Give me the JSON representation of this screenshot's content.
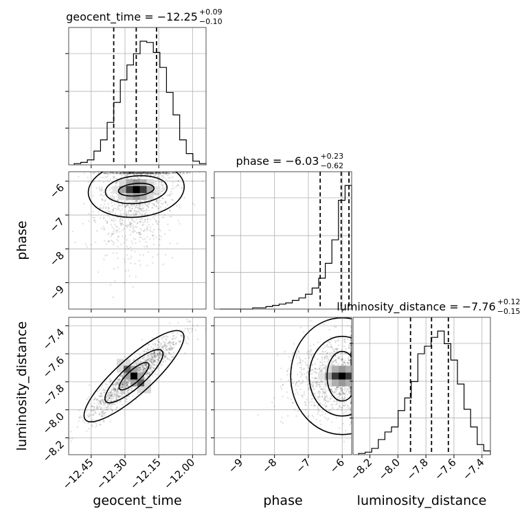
{
  "chart_data": {
    "type": "corner",
    "parameters": [
      "geocent_time",
      "phase",
      "luminosity_distance"
    ],
    "titles": {
      "geocent_time": {
        "name": "geocent_time",
        "median": "−12.25",
        "plus": "+0.09",
        "minus": "−0.10"
      },
      "phase": {
        "name": "phase",
        "median": "−6.03",
        "plus": "+0.23",
        "minus": "−0.62"
      },
      "luminosity_distance": {
        "name": "luminosity_distance",
        "median": "−7.76",
        "plus": "+0.12",
        "minus": "−0.15"
      }
    },
    "ranges": {
      "geocent_time": [
        -12.55,
        -11.94
      ],
      "phase": [
        -9.78,
        -5.72
      ],
      "luminosity_distance": [
        -8.32,
        -7.34
      ]
    },
    "ticks": {
      "geocent_time": {
        "values": [
          -12.45,
          -12.3,
          -12.15,
          -12.0
        ],
        "labels": [
          "−12.45",
          "−12.30",
          "−12.15",
          "−12.00"
        ]
      },
      "phase": {
        "values": [
          -9,
          -8,
          -7,
          -6
        ],
        "labels": [
          "−9",
          "−8",
          "−7",
          "−6"
        ]
      },
      "luminosity_distance": {
        "values": [
          -8.2,
          -8.0,
          -7.8,
          -7.6,
          -7.4
        ],
        "labels": [
          "−8.2",
          "−8.0",
          "−7.8",
          "−7.6",
          "−7.4"
        ]
      }
    },
    "quantiles": {
      "geocent_time": [
        -12.35,
        -12.25,
        -12.16
      ],
      "phase": [
        -6.65,
        -6.03,
        -5.8
      ],
      "luminosity_distance": [
        -7.91,
        -7.76,
        -7.64
      ]
    },
    "histograms": {
      "geocent_time": [
        1,
        2,
        4,
        11,
        20,
        34,
        50,
        68,
        80,
        89,
        99,
        98,
        90,
        78,
        58,
        40,
        20,
        9,
        3,
        1
      ],
      "phase": [
        0,
        0,
        0,
        0,
        0,
        1,
        1,
        2,
        3,
        4,
        5,
        7,
        9,
        12,
        17,
        25,
        37,
        56,
        88,
        100
      ],
      "luminosity_distance": [
        1,
        2,
        5,
        12,
        18,
        22,
        35,
        45,
        58,
        80,
        86,
        93,
        98,
        88,
        75,
        56,
        36,
        22,
        8,
        3
      ]
    },
    "grid": true
  }
}
